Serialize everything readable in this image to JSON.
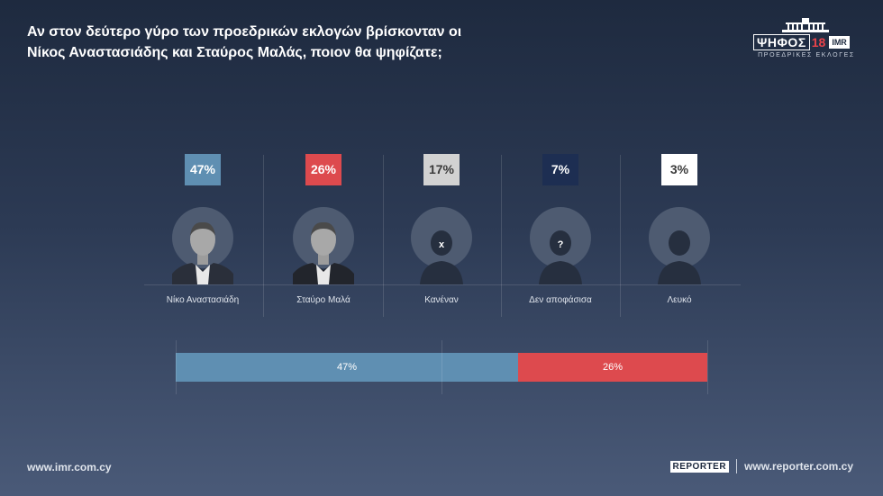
{
  "title": {
    "line1": "Αν στον δεύτερο γύρο των προεδρικών εκλογών βρίσκονταν οι",
    "line2": "Νίκος Αναστασιάδης και Σταύρος Μαλάς, ποιον θα ψηφίζατε;"
  },
  "logo": {
    "word": "ΨΗΦΟΣ",
    "number": "18",
    "badge": "IMR",
    "subtitle": "ΠΡΟΕΔΡΙΚΕΣ ΕΚΛΟΓΕΣ"
  },
  "chart_data": {
    "type": "bar",
    "categories": [
      "Νίκο Αναστασιάδη",
      "Σταύρο Μαλά",
      "Κανέναν",
      "Δεν αποφάσισα",
      "Λευκό"
    ],
    "values": [
      47,
      26,
      17,
      7,
      3
    ],
    "value_labels": [
      "47%",
      "26%",
      "17%",
      "7%",
      "3%"
    ],
    "avatar_icons": [
      "candidate-photo",
      "candidate-photo",
      "x-mark",
      "question-mark",
      "silhouette"
    ],
    "avatar_marks": [
      "",
      "",
      "x",
      "?",
      ""
    ],
    "colors": [
      "#5f8fb2",
      "#dd4a4e",
      "#d2d2d2",
      "#1d2e52",
      "#ffffff"
    ],
    "label_colors": [
      "#ffffff",
      "#ffffff",
      "#3a3a3a",
      "#ffffff",
      "#3a3a3a"
    ],
    "stacked_bar": {
      "segments": [
        {
          "value": 47,
          "label": "47%",
          "color": "#5f8fb2"
        },
        {
          "value": 26,
          "label": "26%",
          "color": "#dd4a4e"
        }
      ]
    }
  },
  "footer": {
    "left_url": "www.imr.com.cy",
    "brand": "REPORTER",
    "right_url": "www.reporter.com.cy"
  }
}
